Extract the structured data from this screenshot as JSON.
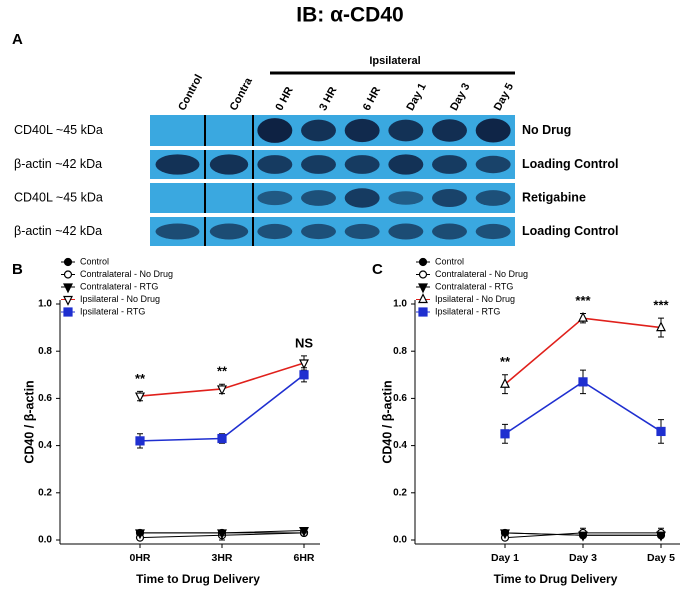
{
  "blot": {
    "label": "A",
    "title": "IB: α-CD40",
    "group_label": "Ipsilateral",
    "lanes": [
      "Control",
      "Contra",
      "0 HR",
      "3 HR",
      "6 HR",
      "Day 1",
      "Day 3",
      "Day 5"
    ],
    "rows": [
      {
        "left": "CD40L ~45 kDa",
        "right": "No Drug"
      },
      {
        "left": "β-actin ~42 kDa",
        "right": "Loading Control"
      },
      {
        "left": "CD40L ~45 kDa",
        "right": "Retigabine"
      },
      {
        "left": "β-actin ~42 kDa",
        "right": "Loading Control"
      }
    ]
  },
  "chart_data": [
    {
      "type": "line",
      "label": "B",
      "xlabel": "Time to Drug Delivery",
      "ylabel": "CD40 / β-actin",
      "categories": [
        "0HR",
        "3HR",
        "6HR"
      ],
      "annotations": [
        "**",
        "**",
        "NS"
      ],
      "ylim": [
        0,
        1.0
      ],
      "yticks": [
        {
          "value": 0,
          "label": "0.0"
        },
        0.2,
        0.4,
        0.6,
        0.8,
        {
          "value": 1.0,
          "label": "1.0"
        }
      ],
      "grid": false,
      "legend": "upper left",
      "series": [
        {
          "name": "Control",
          "color": "#000000",
          "marker": "circle-filled",
          "values": [
            0.03,
            0.03,
            0.03
          ],
          "errors": [
            0.01,
            0.01,
            0.01
          ]
        },
        {
          "name": "Contralateral - No Drug",
          "color": "#000000",
          "marker": "circle-open",
          "values": [
            0.01,
            0.02,
            0.03
          ],
          "errors": [
            0.01,
            0.02,
            0.01
          ]
        },
        {
          "name": "Contralateral - RTG",
          "color": "#000000",
          "marker": "triangle-down-filled",
          "values": [
            0.03,
            0.03,
            0.04
          ],
          "errors": [
            0.01,
            0.01,
            0.01
          ]
        },
        {
          "name": "Ipsilateral - No Drug",
          "color": "#e0201b",
          "marker": "triangle-down-open",
          "values": [
            0.61,
            0.64,
            0.75
          ],
          "errors": [
            0.02,
            0.02,
            0.03
          ]
        },
        {
          "name": "Ipsilateral - RTG",
          "color": "#1f2fd0",
          "marker": "square-filled",
          "values": [
            0.42,
            0.43,
            0.7
          ],
          "errors": [
            0.03,
            0.02,
            0.03
          ]
        }
      ]
    },
    {
      "type": "line",
      "label": "C",
      "xlabel": "Time to Drug Delivery",
      "ylabel": "CD40 / β-actin",
      "categories": [
        "Day 1",
        "Day 3",
        "Day 5"
      ],
      "annotations": [
        "**",
        "***",
        "***"
      ],
      "ylim": [
        0,
        1.0
      ],
      "yticks": [
        {
          "value": 0,
          "label": "0.0"
        },
        0.2,
        0.4,
        0.6,
        0.8,
        {
          "value": 1.0,
          "label": "1.0"
        }
      ],
      "grid": false,
      "legend": "upper left",
      "series": [
        {
          "name": "Control",
          "color": "#000000",
          "marker": "circle-filled",
          "values": [
            0.03,
            0.02,
            0.02
          ],
          "errors": [
            0.01,
            0.01,
            0.01
          ]
        },
        {
          "name": "Contralateral - No Drug",
          "color": "#000000",
          "marker": "circle-open",
          "values": [
            0.01,
            0.03,
            0.03
          ],
          "errors": [
            0.01,
            0.02,
            0.02
          ]
        },
        {
          "name": "Contralateral - RTG",
          "color": "#000000",
          "marker": "triangle-down-filled",
          "values": [
            0.03,
            0.02,
            0.02
          ],
          "errors": [
            0.01,
            0.01,
            0.01
          ]
        },
        {
          "name": "Ipsilateral - No Drug",
          "color": "#e0201b",
          "marker": "triangle-up-open",
          "values": [
            0.66,
            0.94,
            0.9
          ],
          "errors": [
            0.04,
            0.02,
            0.04
          ]
        },
        {
          "name": "Ipsilateral - RTG",
          "color": "#1f2fd0",
          "marker": "square-filled",
          "values": [
            0.45,
            0.67,
            0.46
          ],
          "errors": [
            0.04,
            0.05,
            0.05
          ]
        }
      ]
    }
  ]
}
